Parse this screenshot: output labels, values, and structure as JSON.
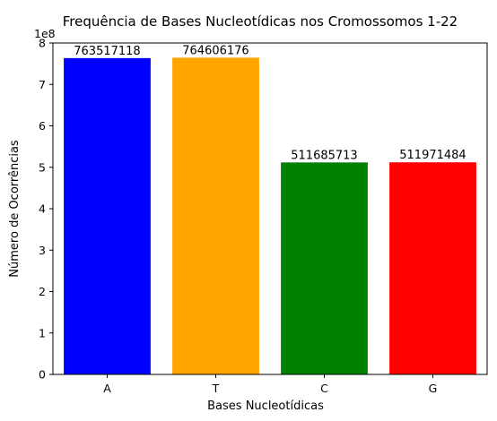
{
  "chart_data": {
    "type": "bar",
    "title": "Frequência de Bases Nucleotídicas nos Cromossomos 1-22",
    "xlabel": "Bases Nucleotídicas",
    "ylabel": "Número de Ocorrências",
    "y_offset_label": "1e8",
    "y_scale": 100000000,
    "ylim": [
      0,
      800000000
    ],
    "y_ticks": [
      0,
      1,
      2,
      3,
      4,
      5,
      6,
      7,
      8
    ],
    "categories": [
      "A",
      "T",
      "C",
      "G"
    ],
    "values": [
      763517118,
      764606176,
      511685713,
      511971484
    ],
    "data_labels": [
      "763517118",
      "764606176",
      "511685713",
      "511971484"
    ],
    "colors": [
      "#0000ff",
      "#ffa500",
      "#008000",
      "#ff0000"
    ],
    "grid": false,
    "legend": "none"
  }
}
